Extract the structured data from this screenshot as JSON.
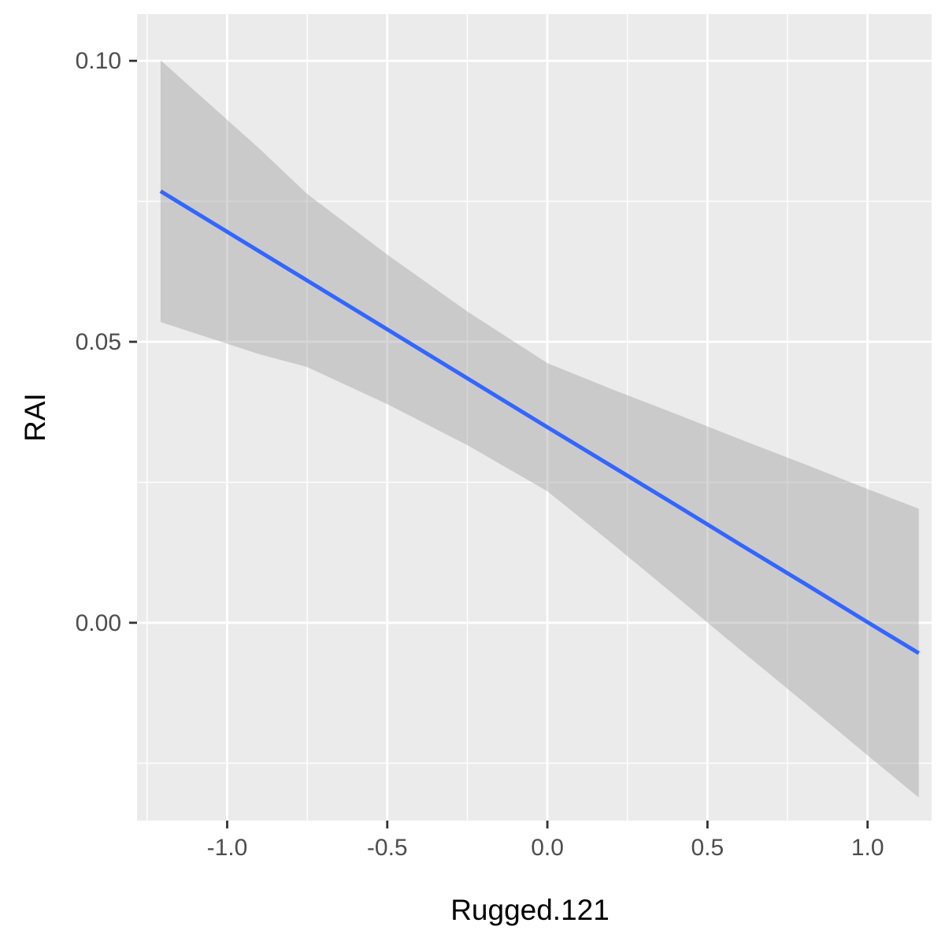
{
  "chart_data": {
    "type": "line",
    "title": "",
    "xlabel": "Rugged.121",
    "ylabel": "RAI",
    "xlim": [
      -1.2815,
      1.2
    ],
    "ylim": [
      -0.0352,
      0.1083
    ],
    "x_ticks": [
      -1.0,
      -0.5,
      0.0,
      0.5,
      1.0
    ],
    "x_tick_labels": [
      "-1.0",
      "-0.5",
      "0.0",
      "0.5",
      "1.0"
    ],
    "y_ticks": [
      0.0,
      0.05,
      0.1
    ],
    "y_tick_labels": [
      "0.00",
      "0.05",
      "0.10"
    ],
    "grid": true,
    "series": [
      {
        "line_color": "#3366ff",
        "ribbon_color": "#999999",
        "points": [
          {
            "x": -1.208,
            "y": 0.0768,
            "lower": 0.0535,
            "upper": 0.1001
          },
          {
            "x": -0.9,
            "y": 0.0661,
            "lower": 0.0478,
            "upper": 0.0844
          },
          {
            "x": -0.75,
            "y": 0.0609,
            "lower": 0.0455,
            "upper": 0.0763
          },
          {
            "x": -0.5,
            "y": 0.0522,
            "lower": 0.0389,
            "upper": 0.0655
          },
          {
            "x": -0.25,
            "y": 0.0435,
            "lower": 0.0316,
            "upper": 0.0554
          },
          {
            "x": 0.0,
            "y": 0.0348,
            "lower": 0.0234,
            "upper": 0.0462
          },
          {
            "x": 0.2,
            "y": 0.0279,
            "lower": 0.0142,
            "upper": 0.0416
          },
          {
            "x": 0.4,
            "y": 0.021,
            "lower": 0.0048,
            "upper": 0.0372
          },
          {
            "x": 0.6,
            "y": 0.014,
            "lower": -0.0047,
            "upper": 0.0327
          },
          {
            "x": 0.8,
            "y": 0.0071,
            "lower": -0.0141,
            "upper": 0.0283
          },
          {
            "x": 1.0,
            "y": 0.0001,
            "lower": -0.0236,
            "upper": 0.0238
          },
          {
            "x": 1.16,
            "y": -0.0054,
            "lower": -0.0311,
            "upper": 0.0203
          }
        ]
      }
    ]
  }
}
